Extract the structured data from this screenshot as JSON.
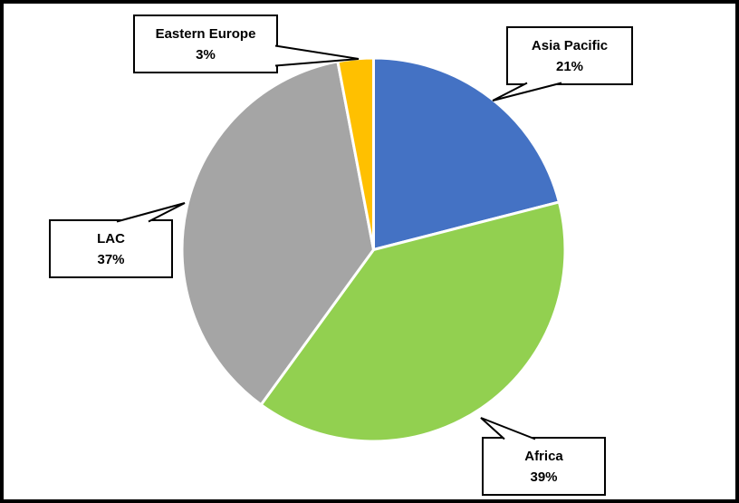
{
  "chart_data": {
    "type": "pie",
    "title": "",
    "direction": "clockwise",
    "start_angle_deg": 0,
    "legend_position": "none",
    "label_style": "callout boxes with leader lines",
    "slices": [
      {
        "label": "Asia Pacific",
        "value": 21,
        "pct_label": "21%",
        "color": "#4472C4"
      },
      {
        "label": "Africa",
        "value": 39,
        "pct_label": "39%",
        "color": "#92D050"
      },
      {
        "label": "LAC",
        "value": 37,
        "pct_label": "37%",
        "color": "#A5A5A5"
      },
      {
        "label": "Eastern Europe",
        "value": 3,
        "pct_label": "3%",
        "color": "#FFC000"
      }
    ],
    "colors": {
      "background": "#FFFFFF",
      "frame_border": "#000000",
      "slice_gap": "#FFFFFF",
      "callout_fill": "#FFFFFF",
      "callout_border": "#000000",
      "text": "#000000"
    }
  }
}
